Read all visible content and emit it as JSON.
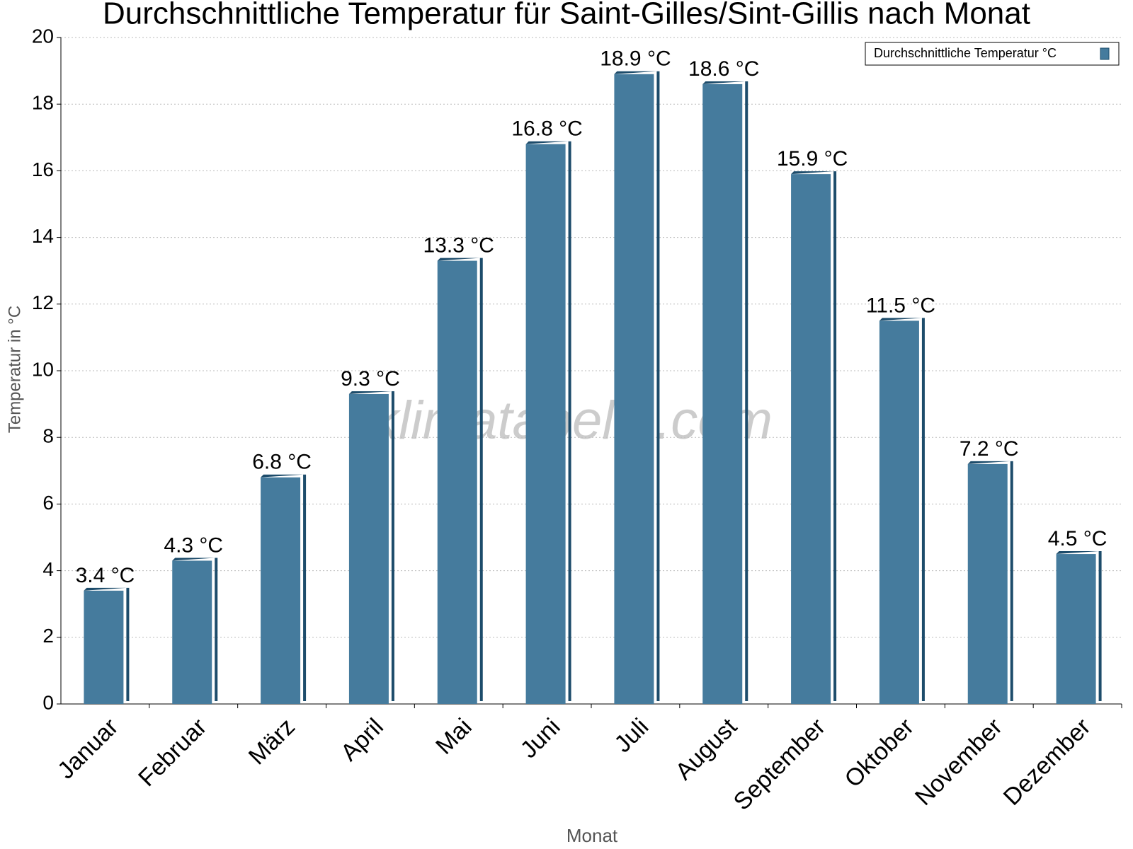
{
  "chart_data": {
    "type": "bar",
    "title": "Durchschnittliche Temperatur für Saint-Gilles/Sint-Gillis nach Monat",
    "x_label": "Monat",
    "y_label": "Temperatur in °C",
    "watermark": "klimatabelle.com",
    "categories": [
      "Januar",
      "Februar",
      "März",
      "April",
      "Mai",
      "Juni",
      "Juli",
      "August",
      "September",
      "Oktober",
      "November",
      "Dezember"
    ],
    "series": [
      {
        "name": "Durchschnittliche Temperatur °C",
        "color": "#457b9d",
        "values": [
          3.4,
          4.3,
          6.8,
          9.3,
          13.3,
          16.8,
          18.9,
          18.6,
          15.9,
          11.5,
          7.2,
          4.5
        ],
        "value_labels": [
          "3.4 °C",
          "4.3 °C",
          "6.8 °C",
          "9.3 °C",
          "13.3 °C",
          "16.8 °C",
          "18.9 °C",
          "18.6 °C",
          "15.9 °C",
          "11.5 °C",
          "7.2 °C",
          "4.5 °C"
        ]
      }
    ],
    "ylim": [
      0,
      20
    ],
    "yticks": [
      0,
      2,
      4,
      6,
      8,
      10,
      12,
      14,
      16,
      18,
      20
    ],
    "grid": true,
    "legend": "top-right"
  }
}
